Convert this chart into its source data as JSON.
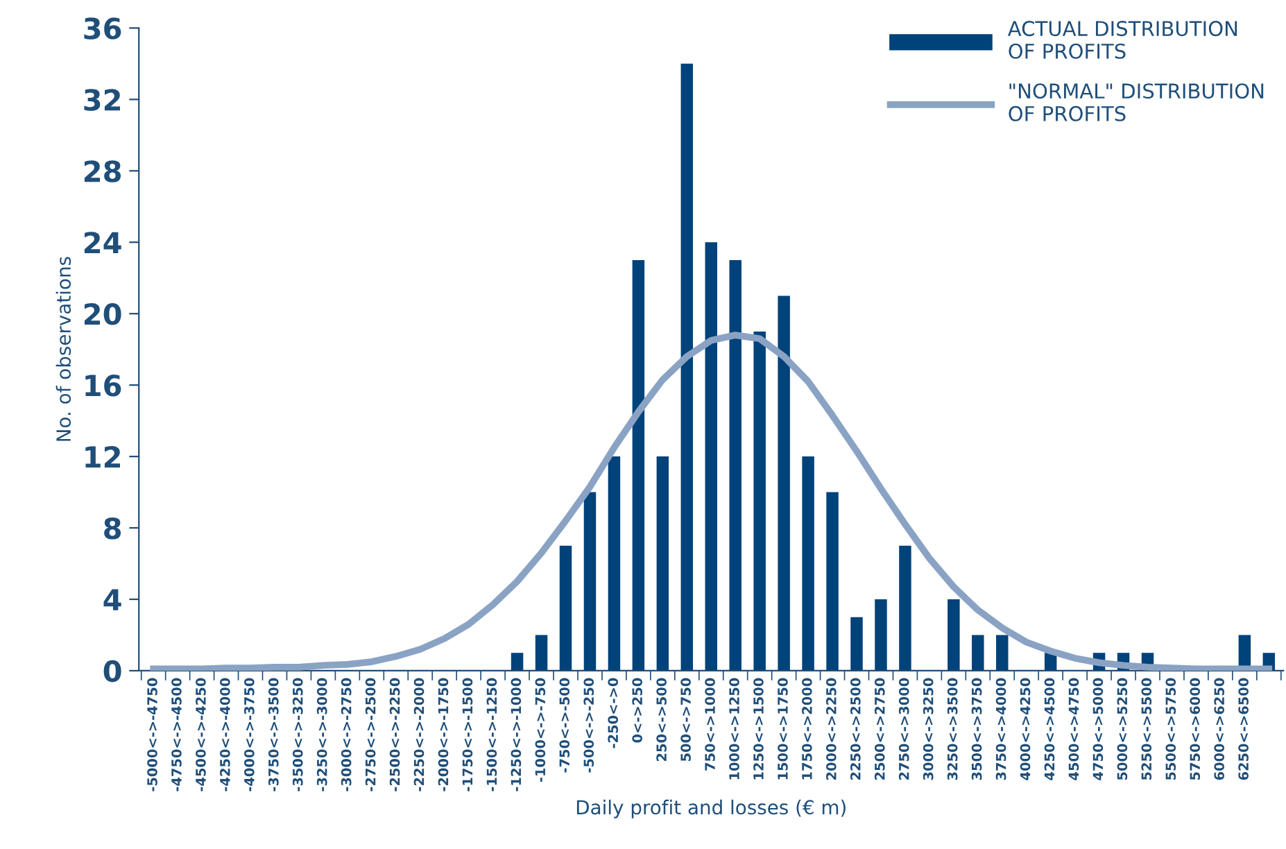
{
  "chart_data": {
    "type": "bar",
    "xlabel": "Daily profit and losses (€ m)",
    "ylabel": "No. of observations",
    "categories": [
      "-5000<->-4750",
      "-4750<->-4500",
      "-4500<->-4250",
      "-4250<->-4000",
      "-4000<->-3750",
      "-3750<->-3500",
      "-3500<->-3250",
      "-3250<->-3000",
      "-3000<->-2750",
      "-2750<->-2500",
      "-2500<->-2250",
      "-2250<->-2000",
      "-2000<->-1750",
      "-1750<->-1500",
      "-1500<->-1250",
      "-1250<->-1000",
      "-1000<->-750",
      "-750<->-500",
      "-500<->-250",
      "-250<->0",
      "0<->250",
      "250<->500",
      "500<->750",
      "750<->1000",
      "1000<->1250",
      "1250<->1500",
      "1500<->1750",
      "1750<->2000",
      "2000<->2250",
      "2250<->2500",
      "2500<->2750",
      "2750<->3000",
      "3000<->3250",
      "3250<->3500",
      "3500<->3750",
      "3750<->4000",
      "4000<->4250",
      "4250<->4500",
      "4500<->4750",
      "4750<->5000",
      "5000<->5250",
      "5250<->5500",
      "5500<->5750",
      "5750<->6000",
      "6000<->6250",
      "6250<->6500",
      null
    ],
    "series": [
      {
        "name": "ACTUAL DISTRIBUTION OF PROFITS",
        "color": "#00427a",
        "values": [
          0,
          0,
          0,
          0,
          0,
          0,
          0,
          0,
          0,
          0,
          0,
          0,
          0,
          0,
          0,
          1,
          2,
          7,
          10,
          12,
          23,
          12,
          34,
          24,
          23,
          19,
          21,
          12,
          10,
          3,
          4,
          7,
          0,
          4,
          2,
          2,
          0,
          1,
          0,
          1,
          1,
          1,
          0,
          0,
          0,
          2,
          1
        ]
      },
      {
        "name": "\"NORMAL\" DISTRIBUTION OF PROFITS",
        "type": "line",
        "color": "#8aa3c4",
        "values": [
          0.1,
          0.1,
          0.1,
          0.15,
          0.15,
          0.2,
          0.2,
          0.3,
          0.35,
          0.5,
          0.8,
          1.2,
          1.8,
          2.6,
          3.7,
          5.0,
          6.6,
          8.4,
          10.3,
          12.5,
          14.5,
          16.3,
          17.6,
          18.5,
          18.8,
          18.6,
          17.6,
          16.2,
          14.3,
          12.3,
          10.2,
          8.2,
          6.3,
          4.7,
          3.4,
          2.4,
          1.6,
          1.1,
          0.7,
          0.45,
          0.3,
          0.2,
          0.15,
          0.1,
          0.1,
          0.1,
          0.1
        ]
      }
    ],
    "ylim": [
      0,
      36
    ],
    "yticks": [
      0,
      4,
      8,
      12,
      16,
      20,
      24,
      28,
      32,
      36
    ],
    "grid": false,
    "legend": "top right"
  }
}
